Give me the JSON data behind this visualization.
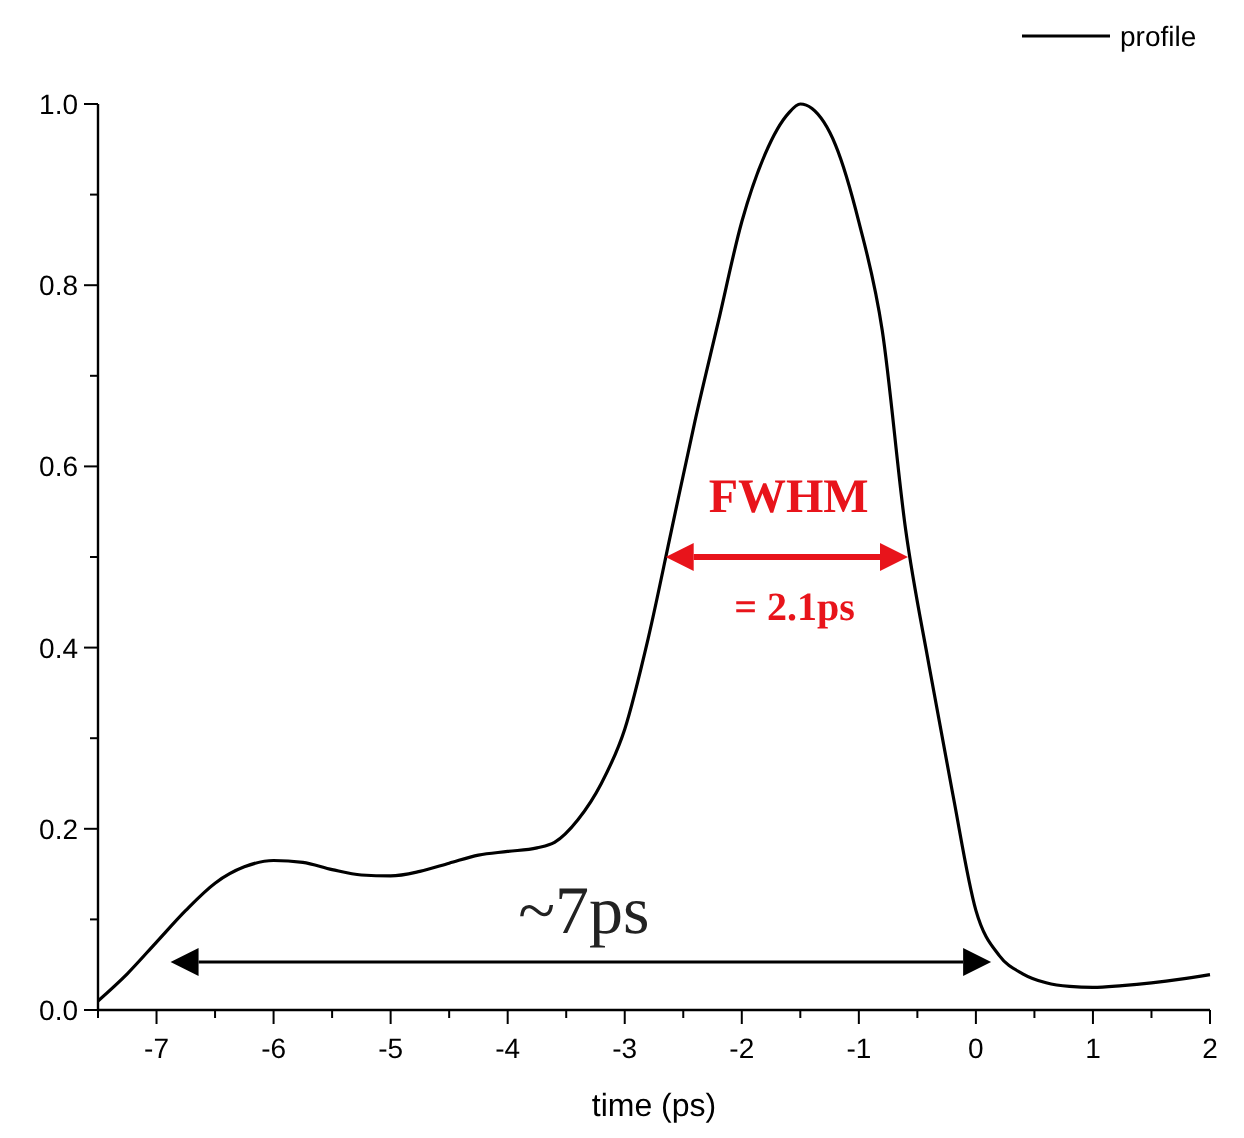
{
  "chart_data": {
    "type": "line",
    "xlabel": "time (ps)",
    "x": [
      -7.5,
      -7.25,
      -7,
      -6.75,
      -6.5,
      -6.25,
      -6,
      -5.75,
      -5.5,
      -5.25,
      -5,
      -4.75,
      -4.5,
      -4.25,
      -4,
      -3.75,
      -3.6,
      -3.4,
      -3.2,
      -3,
      -2.8,
      -2.6,
      -2.4,
      -2.2,
      -2,
      -1.8,
      -1.6,
      -1.5,
      -1.4,
      -1.2,
      -1,
      -0.8,
      -0.6,
      -0.4,
      -0.2,
      0,
      0.2,
      0.4,
      0.6,
      0.8,
      1,
      1.25,
      1.5,
      1.75,
      2
    ],
    "series": [
      {
        "name": "profile",
        "color": "#000000",
        "values": [
          0.01,
          0.04,
          0.075,
          0.11,
          0.14,
          0.158,
          0.165,
          0.163,
          0.155,
          0.149,
          0.148,
          0.153,
          0.162,
          0.171,
          0.175,
          0.179,
          0.185,
          0.21,
          0.25,
          0.31,
          0.41,
          0.53,
          0.65,
          0.76,
          0.87,
          0.945,
          0.99,
          1.0,
          0.995,
          0.955,
          0.87,
          0.75,
          0.53,
          0.38,
          0.24,
          0.11,
          0.06,
          0.04,
          0.03,
          0.026,
          0.025,
          0.027,
          0.03,
          0.034,
          0.039
        ]
      }
    ],
    "xlim": [
      -7.5,
      2
    ],
    "xticks": [
      {
        "value": -7.5,
        "label": null
      },
      -7,
      {
        "value": -6.5,
        "label": null
      },
      -6,
      {
        "value": -5.5,
        "label": null
      },
      -5,
      {
        "value": -4.5,
        "label": null
      },
      -4,
      {
        "value": -3.5,
        "label": null
      },
      -3,
      {
        "value": -2.5,
        "label": null
      },
      -2,
      {
        "value": -1.5,
        "label": null
      },
      -1,
      {
        "value": -0.5,
        "label": null
      },
      0,
      {
        "value": 0.5,
        "label": null
      },
      1,
      {
        "value": 1.5,
        "label": null
      },
      2
    ],
    "ylim": [
      0,
      1
    ],
    "yticks": [
      {
        "value": 0,
        "label": "0.0"
      },
      {
        "value": 0.1,
        "label": null
      },
      0.2,
      {
        "value": 0.3,
        "label": null
      },
      0.4,
      {
        "value": 0.5,
        "label": null
      },
      0.6,
      {
        "value": 0.7,
        "label": null
      },
      0.8,
      {
        "value": 0.9,
        "label": null
      },
      {
        "value": 1,
        "label": "1.0"
      }
    ],
    "grid": false,
    "legend": "top right",
    "marker": "none",
    "line_style": "solid",
    "annotations": [
      "FWHM",
      "= 2.1ps",
      "~7ps"
    ]
  }
}
